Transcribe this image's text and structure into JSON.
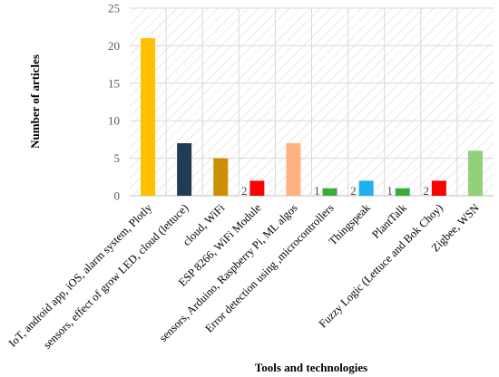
{
  "chart_data": {
    "type": "bar",
    "title": "",
    "xlabel": "Tools and technologies",
    "ylabel": "Number of articles",
    "ylim": [
      0,
      25
    ],
    "yticks": [
      0,
      5,
      10,
      15,
      20,
      25
    ],
    "grid": true,
    "legend": "none",
    "categories": [
      "IoT, android app, iOS, alarm system, Plotly",
      "sensors, effect of grow LED, cloud (lettuce)",
      "cloud, WiFi",
      "ESP 8266, WiFi Module",
      "sensors, Arduino, Raspberry Pi, ML algos",
      "Error detection using ,microcontrollers",
      "Thingspeak",
      "PlantTalk",
      "Fuzzy Logic (Lettuce and Bok Choy)",
      "Zigbee, WSN"
    ],
    "values": [
      21,
      7,
      5,
      2,
      7,
      1,
      2,
      1,
      2,
      6
    ],
    "colors": [
      "#FFC000",
      "#243B55",
      "#CC9000",
      "#FF0000",
      "#FFB27F",
      "#3CAA3C",
      "#1FAEEF",
      "#3CAA3C",
      "#FF0000",
      "#92D07A"
    ]
  }
}
